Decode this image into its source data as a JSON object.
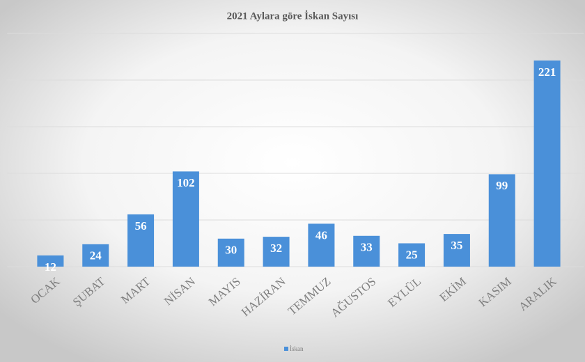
{
  "chart_data": {
    "type": "bar",
    "title": "2021 Aylara göre İskan Sayısı",
    "categories": [
      "OCAK",
      "ŞUBAT",
      "MART",
      "NİSAN",
      "MAYIS",
      "HAZİRAN",
      "TEMMUZ",
      "AĞUSTOS",
      "EYLÜL",
      "EKİM",
      "KASIM",
      "ARALIK"
    ],
    "series": [
      {
        "name": "İskan",
        "color": "#4a90d9",
        "values": [
          12,
          24,
          56,
          102,
          30,
          32,
          46,
          33,
          25,
          35,
          99,
          221
        ]
      }
    ],
    "ylim": [
      0,
      250
    ],
    "yticks": [
      0,
      50,
      100,
      150,
      200,
      250
    ],
    "grid": true,
    "legend": "bottom"
  }
}
